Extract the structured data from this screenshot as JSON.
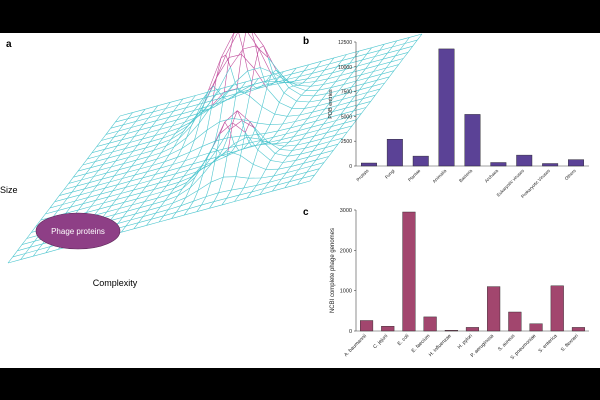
{
  "panels": {
    "a": {
      "letter": "a",
      "ylabel": "Size",
      "xlabel": "Complexity",
      "blob_label": "Phage proteins"
    },
    "b": {
      "letter": "b"
    },
    "c": {
      "letter": "c"
    }
  },
  "colors": {
    "bar_b": "#5b4296",
    "bar_c": "#a2466e",
    "mesh": "#4fc6cf",
    "mesh_peak": "#c24f9d",
    "blob": "#8e3f86"
  },
  "chart_data": [
    {
      "panel": "a",
      "type": "other",
      "description_labels": [
        "Size",
        "Complexity",
        "Phage proteins"
      ]
    },
    {
      "panel": "b",
      "type": "bar",
      "categories": [
        "Protists",
        "Fungi",
        "Plantae",
        "Animalia",
        "Bacteria",
        "Archaea",
        "Eukaryotic viruses",
        "Prokaryotic Viruses",
        "Others"
      ],
      "values": [
        300,
        2700,
        1000,
        11800,
        5200,
        350,
        1100,
        250,
        650
      ],
      "ylabel": "PDB entries",
      "yticks": [
        0,
        2500,
        5000,
        7500,
        10000,
        12500
      ],
      "ylim": [
        0,
        12500
      ]
    },
    {
      "panel": "c",
      "type": "bar",
      "categories": [
        "A. baumannii",
        "C. jejuni",
        "E. coli",
        "E. faecium",
        "H. influenzae",
        "H. pylori",
        "P. aeruginosa",
        "S. aureus",
        "S. pneumoniae",
        "S. enterica",
        "S. flexneri"
      ],
      "values": [
        260,
        120,
        2950,
        350,
        20,
        90,
        1100,
        470,
        180,
        1120,
        90
      ],
      "ylabel": "NCBI complete phage genomes",
      "yticks": [
        0,
        1000,
        2000,
        3000
      ],
      "ylim": [
        0,
        3000
      ]
    }
  ]
}
